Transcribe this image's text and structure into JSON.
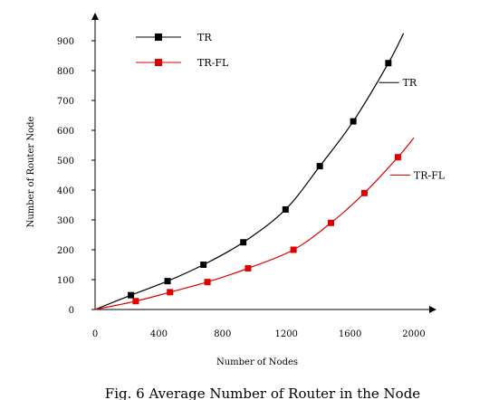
{
  "chart_data": {
    "type": "line",
    "title": "",
    "xlabel": "Number of Nodes",
    "ylabel": "Number of Router Node",
    "xlim": [
      0,
      2000
    ],
    "ylim": [
      0,
      900
    ],
    "xticks": [
      0,
      400,
      800,
      1200,
      1600,
      2000
    ],
    "yticks": [
      0,
      100,
      200,
      300,
      400,
      500,
      600,
      700,
      800,
      900
    ],
    "grid": false,
    "legend": "top-left",
    "series": [
      {
        "name": "TR",
        "color": "#000000",
        "marker": "square",
        "points": [
          {
            "x": 225,
            "y": 48
          },
          {
            "x": 455,
            "y": 95
          },
          {
            "x": 680,
            "y": 150
          },
          {
            "x": 930,
            "y": 225
          },
          {
            "x": 1195,
            "y": 335
          },
          {
            "x": 1410,
            "y": 480
          },
          {
            "x": 1620,
            "y": 630
          },
          {
            "x": 1840,
            "y": 825
          }
        ],
        "curve": [
          {
            "x": 0,
            "y": 0
          },
          {
            "x": 225,
            "y": 48
          },
          {
            "x": 455,
            "y": 95
          },
          {
            "x": 680,
            "y": 150
          },
          {
            "x": 930,
            "y": 225
          },
          {
            "x": 1195,
            "y": 335
          },
          {
            "x": 1410,
            "y": 480
          },
          {
            "x": 1620,
            "y": 630
          },
          {
            "x": 1840,
            "y": 825
          },
          {
            "x": 1935,
            "y": 925
          }
        ]
      },
      {
        "name": "TR-FL",
        "color": "#e00000",
        "marker": "square",
        "points": [
          {
            "x": 255,
            "y": 28
          },
          {
            "x": 470,
            "y": 58
          },
          {
            "x": 705,
            "y": 92
          },
          {
            "x": 960,
            "y": 138
          },
          {
            "x": 1245,
            "y": 200
          },
          {
            "x": 1480,
            "y": 290
          },
          {
            "x": 1690,
            "y": 390
          },
          {
            "x": 1900,
            "y": 510
          }
        ],
        "curve": [
          {
            "x": 0,
            "y": 0
          },
          {
            "x": 255,
            "y": 28
          },
          {
            "x": 470,
            "y": 58
          },
          {
            "x": 705,
            "y": 92
          },
          {
            "x": 960,
            "y": 138
          },
          {
            "x": 1245,
            "y": 200
          },
          {
            "x": 1480,
            "y": 290
          },
          {
            "x": 1690,
            "y": 390
          },
          {
            "x": 1900,
            "y": 510
          },
          {
            "x": 2000,
            "y": 575
          }
        ]
      }
    ],
    "annotations": [
      {
        "text": "TR",
        "x": 1850,
        "y": 760
      },
      {
        "text": "TR-FL",
        "x": 1920,
        "y": 450
      }
    ]
  },
  "caption": "Fig. 6 Average Number of Router in the Node"
}
